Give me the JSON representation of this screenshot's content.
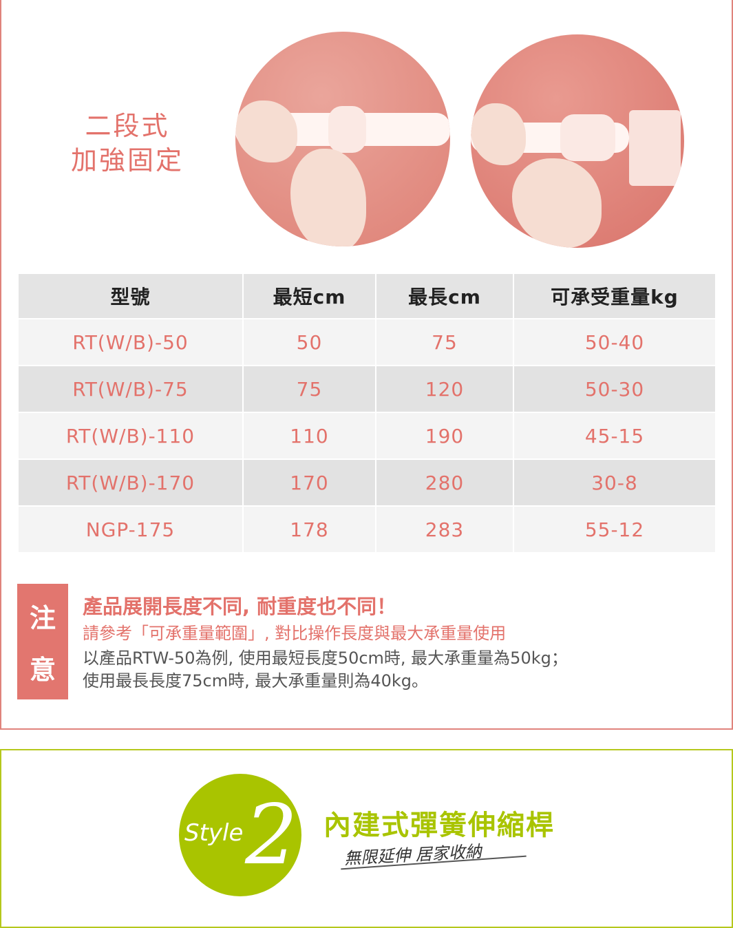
{
  "feature": {
    "line1": "二段式",
    "line2": "加強固定"
  },
  "table": {
    "headers": [
      "型號",
      "最短cm",
      "最長cm",
      "可承受重量kg"
    ],
    "rows": [
      [
        "RT(W/B)-50",
        "50",
        "75",
        "50-40"
      ],
      [
        "RT(W/B)-75",
        "75",
        "120",
        "50-30"
      ],
      [
        "RT(W/B)-110",
        "110",
        "190",
        "45-15"
      ],
      [
        "RT(W/B)-170",
        "170",
        "280",
        "30-8"
      ],
      [
        "NGP-175",
        "178",
        "283",
        "55-12"
      ]
    ]
  },
  "note": {
    "tag1": "注",
    "tag2": "意",
    "title": "產品展開長度不同, 耐重度也不同！",
    "subtitle": "請參考「可承重量範圍」, 對比操作長度與最大承重量使用",
    "example1": "以產品RTW-50為例, 使用最短長度50cm時, 最大承重量為50kg；",
    "example2": "使用最長長度75cm時, 最大承重量則為40kg。"
  },
  "style2": {
    "badge_word": "Style",
    "badge_number": "2",
    "title": "內建式彈簧伸縮桿",
    "subtitle": "無限延伸 居家收納"
  },
  "colors": {
    "accent_pink": "#e3726b",
    "accent_green": "#a9c400"
  }
}
